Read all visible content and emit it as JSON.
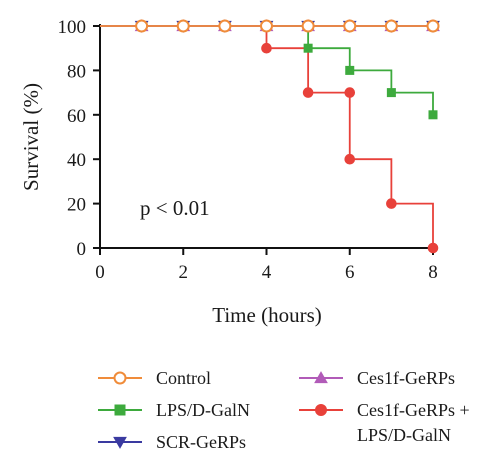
{
  "chart_data": {
    "type": "line",
    "style": "survival-step",
    "xlabel": "Time (hours)",
    "ylabel": "Survival (%)",
    "xlim": [
      0,
      8
    ],
    "ylim": [
      0,
      100
    ],
    "xticks": [
      0,
      2,
      4,
      6,
      8
    ],
    "yticks": [
      0,
      20,
      40,
      60,
      80,
      100
    ],
    "annotation": "p < 0.01",
    "grid": false,
    "legend_position": "bottom",
    "series": [
      {
        "name": "Control",
        "color": "#F08C3A",
        "marker": "open-circle",
        "x": [
          0,
          1,
          2,
          3,
          4,
          5,
          6,
          7,
          8
        ],
        "y": [
          100,
          100,
          100,
          100,
          100,
          100,
          100,
          100,
          100
        ]
      },
      {
        "name": "LPS/D-GalN",
        "color": "#3DAA3D",
        "marker": "square",
        "x": [
          0,
          1,
          2,
          3,
          4,
          5,
          6,
          7,
          8
        ],
        "y": [
          100,
          100,
          100,
          100,
          100,
          90,
          80,
          70,
          60
        ]
      },
      {
        "name": "SCR-GeRPs",
        "color": "#3A3AA0",
        "marker": "triangle-down",
        "x": [
          0,
          1,
          2,
          3,
          4,
          5,
          6,
          7,
          8
        ],
        "y": [
          100,
          100,
          100,
          100,
          100,
          100,
          100,
          100,
          100
        ]
      },
      {
        "name": "Ces1f-GeRPs",
        "color": "#B15BB8",
        "marker": "triangle-up",
        "x": [
          0,
          1,
          2,
          3,
          4,
          5,
          6,
          7,
          8
        ],
        "y": [
          100,
          100,
          100,
          100,
          100,
          100,
          100,
          100,
          100
        ]
      },
      {
        "name": "Ces1f-GeRPs + LPS/D-GalN",
        "label_lines": [
          "Ces1f-GeRPs +",
          "LPS/D-GalN"
        ],
        "color": "#E8413A",
        "marker": "circle",
        "x": [
          0,
          1,
          2,
          3,
          4,
          5,
          6,
          7,
          8
        ],
        "y": [
          100,
          100,
          100,
          100,
          90,
          70,
          40,
          20,
          0
        ],
        "step_points": [
          [
            4,
            90
          ],
          [
            5,
            70
          ],
          [
            6,
            70
          ],
          [
            6,
            40
          ],
          [
            7,
            20
          ],
          [
            8,
            0
          ]
        ]
      }
    ]
  }
}
